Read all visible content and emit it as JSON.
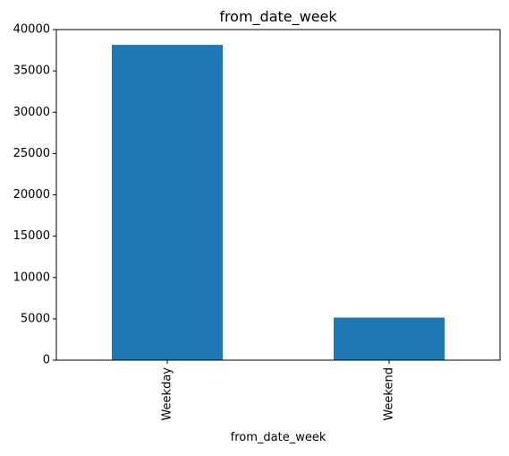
{
  "chart_data": {
    "type": "bar",
    "title": "from_date_week",
    "xlabel": "from_date_week",
    "ylabel": "",
    "categories": [
      "Weekday",
      "Weekend"
    ],
    "values": [
      38150,
      5150
    ],
    "ylim": [
      0,
      40000
    ],
    "yticks": [
      0,
      5000,
      10000,
      15000,
      20000,
      25000,
      30000,
      35000,
      40000
    ],
    "ytick_labels": [
      "0",
      "5000",
      "10000",
      "15000",
      "20000",
      "25000",
      "30000",
      "35000",
      "40000"
    ],
    "xtick_rotation": "vertical",
    "grid": false,
    "legend": false,
    "bar_color": "#1f77b4"
  }
}
